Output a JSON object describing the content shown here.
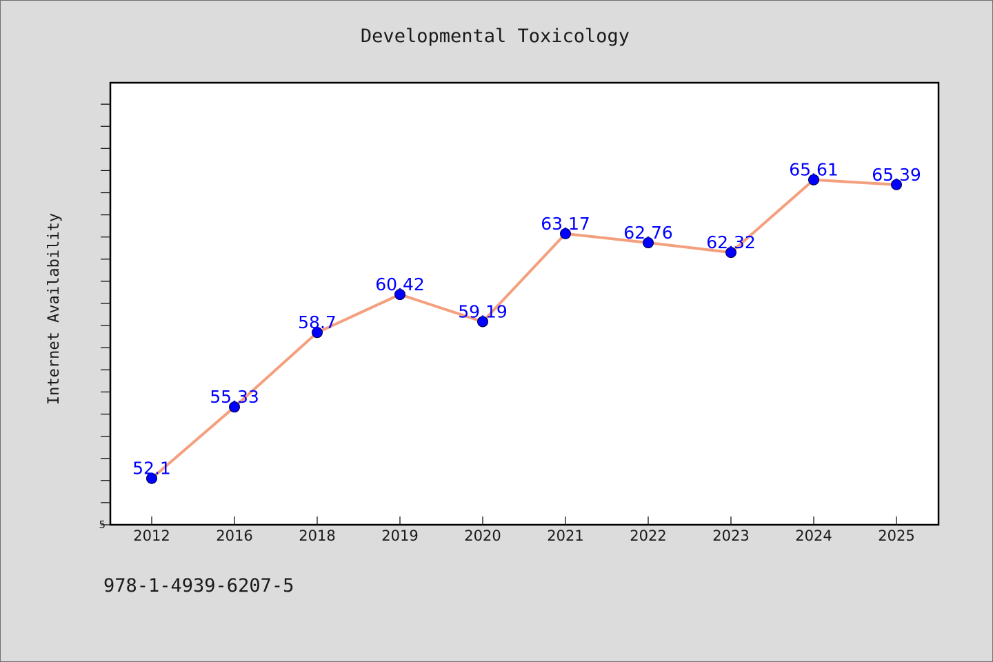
{
  "chart_data": {
    "type": "line",
    "title": "Developmental Toxicology",
    "xlabel": "",
    "ylabel": "Internet Availability",
    "categories": [
      "2012",
      "2016",
      "2018",
      "2019",
      "2020",
      "2021",
      "2022",
      "2023",
      "2024",
      "2025"
    ],
    "series": [
      {
        "values": [
          52.1,
          55.33,
          58.7,
          60.42,
          59.19,
          63.17,
          62.76,
          62.32,
          65.61,
          65.39
        ],
        "labels": [
          "52.1",
          "55.33",
          "58.7",
          "60.42",
          "59.19",
          "63.17",
          "62.76",
          "62.32",
          "65.61",
          "65.39"
        ]
      }
    ],
    "y_tick_labels": [
      "5"
    ],
    "ylim": [
      50,
      70
    ],
    "grid": false,
    "legend": "none",
    "colors": {
      "line": "#f4a07e",
      "marker": "#0000ff",
      "data_label": "#0000ff",
      "plot_background": "#ffffff",
      "page_background": "#dcdcdc"
    }
  },
  "footer": {
    "identifier": "978-1-4939-6207-5"
  }
}
